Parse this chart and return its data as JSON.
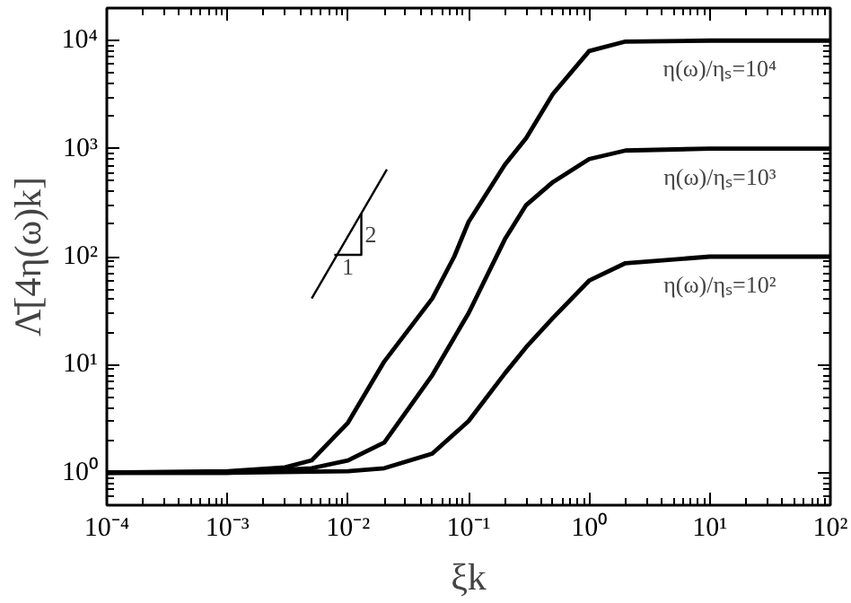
{
  "chart_data": {
    "type": "line",
    "xlabel": "ξk",
    "ylabel": "Λ̄[4η(ω)k]",
    "log": "xy",
    "grid": false,
    "legend": "right",
    "marker": "none",
    "line_style": "solid",
    "xlim": [
      0.0001,
      100
    ],
    "ylim": [
      0.5,
      20000
    ],
    "xticks": [
      {
        "value": 0.0001,
        "label": "10⁻⁴"
      },
      {
        "value": 0.001,
        "label": "10⁻³"
      },
      {
        "value": 0.01,
        "label": "10⁻²"
      },
      {
        "value": 0.1,
        "label": "10⁻¹"
      },
      {
        "value": 1,
        "label": "10⁰"
      },
      {
        "value": 10,
        "label": "10¹"
      },
      {
        "value": 100,
        "label": "10²"
      }
    ],
    "yticks": [
      {
        "value": 1,
        "label": "10⁰"
      },
      {
        "value": 10,
        "label": "10¹"
      },
      {
        "value": 100,
        "label": "10²"
      },
      {
        "value": 1000,
        "label": "10³"
      },
      {
        "value": 10000,
        "label": "10⁴"
      }
    ],
    "series": [
      {
        "name": "η(ω)/ηₛ=10⁴",
        "color": "#000000",
        "x": [
          0.0001,
          0.001,
          0.003,
          0.005,
          0.01,
          0.02,
          0.05,
          0.076,
          0.1,
          0.2,
          0.3,
          0.5,
          1,
          2,
          10,
          100
        ],
        "values": [
          1,
          1.03,
          1.12,
          1.3,
          2.9,
          10.7,
          41,
          100,
          210,
          710,
          1250,
          3200,
          8000,
          9800,
          10000,
          10000
        ]
      },
      {
        "name": "η(ω)/ηₛ=10³",
        "color": "#000000",
        "x": [
          0.0001,
          0.001,
          0.005,
          0.01,
          0.02,
          0.05,
          0.1,
          0.2,
          0.3,
          0.5,
          1,
          2,
          10,
          100
        ],
        "values": [
          1,
          1,
          1.1,
          1.3,
          1.9,
          8,
          30,
          145,
          300,
          490,
          800,
          960,
          1000,
          1000
        ]
      },
      {
        "name": "η(ω)/ηₛ=10²",
        "color": "#000000",
        "x": [
          0.0001,
          0.001,
          0.01,
          0.02,
          0.05,
          0.1,
          0.2,
          0.3,
          0.5,
          1,
          2,
          10,
          100
        ],
        "values": [
          1,
          1,
          1.03,
          1.1,
          1.5,
          3,
          8.3,
          14.5,
          27,
          60,
          87,
          100,
          100
        ]
      },
      {
        "color": "#000000",
        "x": [
          0.005,
          0.021
        ],
        "values": [
          41,
          640
        ]
      },
      {
        "color": "#000000",
        "x": [
          0.0077,
          0.0129,
          0.0129
        ],
        "values": [
          104,
          104,
          253
        ]
      }
    ],
    "annotations": [
      "1",
      "2"
    ]
  }
}
